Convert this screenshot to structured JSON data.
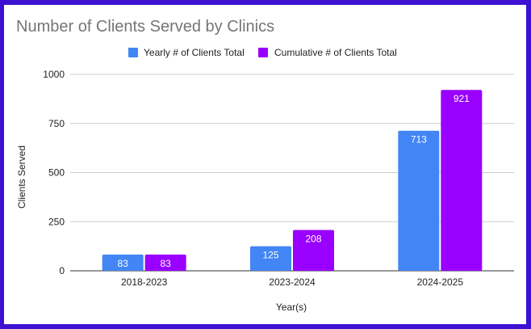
{
  "chart_data": {
    "type": "bar",
    "title": "Number of Clients Served by Clinics",
    "xlabel": "Year(s)",
    "ylabel": "Clients Served",
    "categories": [
      "2018-2023",
      "2023-2024",
      "2024-2025"
    ],
    "series": [
      {
        "name": "Yearly # of Clients Total",
        "values": [
          83,
          125,
          713
        ],
        "color": "#4285f4"
      },
      {
        "name": "Cumulative # of Clients Total",
        "values": [
          83,
          208,
          921
        ],
        "color": "#9900ff"
      }
    ],
    "ylim": [
      0,
      1000
    ],
    "yticks": [
      0,
      250,
      500,
      750,
      1000
    ],
    "grid": true,
    "legend_position": "top-center",
    "data_labels": true
  }
}
